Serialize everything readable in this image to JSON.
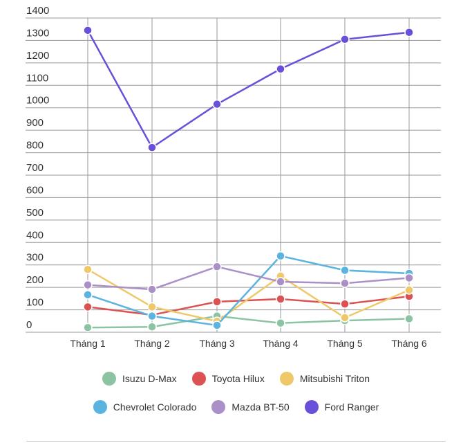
{
  "chart_data": {
    "type": "line",
    "title": "",
    "xlabel": "",
    "ylabel": "",
    "categories": [
      "Tháng 1",
      "Tháng 2",
      "Tháng 3",
      "Tháng 4",
      "Tháng 5",
      "Tháng 6"
    ],
    "ylim": [
      0,
      1400
    ],
    "yticks": [
      "0",
      "100",
      "200",
      "300",
      "400",
      "500",
      "600",
      "700",
      "800",
      "900",
      "1000",
      "1100",
      "1200",
      "1300",
      "1400"
    ],
    "grid": true,
    "legend_position": "bottom",
    "series": [
      {
        "name": "Isuzu D-Max",
        "color": "#8cc4a3",
        "values": [
          21,
          24,
          72,
          41,
          52,
          60
        ]
      },
      {
        "name": "Toyota Hilux",
        "color": "#dc5252",
        "values": [
          113,
          77,
          136,
          148,
          126,
          160
        ]
      },
      {
        "name": "Mitsubishi Triton",
        "color": "#efc86a",
        "values": [
          280,
          113,
          49,
          250,
          65,
          188
        ]
      },
      {
        "name": "Chevrolet Colorado",
        "color": "#5bb3e0",
        "values": [
          167,
          72,
          31,
          340,
          276,
          262
        ]
      },
      {
        "name": "Mazda BT-50",
        "color": "#ab90c8",
        "values": [
          211,
          191,
          292,
          225,
          218,
          242
        ]
      },
      {
        "name": "Ford Ranger",
        "color": "#6a4fd8",
        "values": [
          1345,
          823,
          1016,
          1173,
          1305,
          1336
        ]
      }
    ]
  }
}
